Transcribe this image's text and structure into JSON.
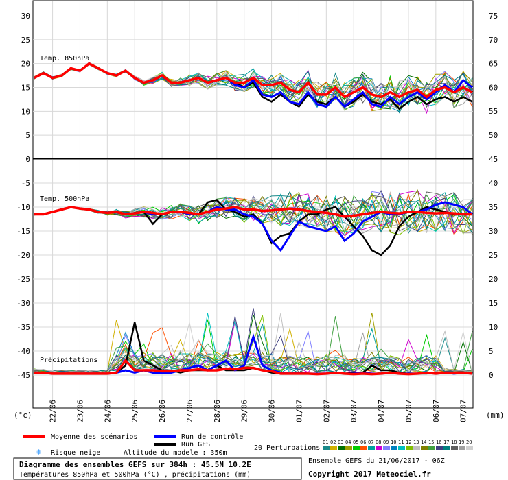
{
  "chart_data": {
    "type": "line",
    "dates": [
      "22/06",
      "23/06",
      "24/06",
      "25/06",
      "26/06",
      "27/06",
      "28/06",
      "29/06",
      "30/06",
      "01/07",
      "02/07",
      "03/07",
      "04/07",
      "05/07",
      "06/07",
      "07/07"
    ],
    "unit_left": "(°c)",
    "unit_right": "(mm)",
    "panels": {
      "t850": {
        "label": "Temp. 850hPa",
        "left_ticks": [
          30,
          25,
          20,
          15,
          10,
          5,
          0
        ],
        "right_ticks": [
          75,
          70,
          65,
          60,
          55,
          50
        ],
        "ylim_left": [
          0,
          30
        ],
        "x": [
          0,
          8,
          16,
          24,
          32,
          40,
          48,
          56,
          64,
          72,
          80,
          88,
          96,
          104,
          112,
          120,
          128,
          136,
          144,
          152,
          160,
          168,
          176,
          184,
          192,
          200,
          208,
          216,
          224,
          232,
          240,
          248,
          256,
          264,
          272,
          280,
          288,
          296,
          304,
          312,
          320,
          328,
          336,
          344,
          352,
          360,
          368,
          376,
          384
        ],
        "mean": [
          17,
          18,
          17,
          17.5,
          19,
          18.5,
          20,
          19,
          18,
          17.5,
          18.5,
          17,
          16,
          16.5,
          17.5,
          16,
          16,
          16.5,
          17,
          16,
          16.5,
          17,
          16,
          16,
          17,
          15.5,
          15.5,
          16,
          14.5,
          14,
          16,
          13.5,
          13.5,
          15,
          13,
          14,
          15,
          13.5,
          13,
          14,
          13,
          14,
          14.5,
          13,
          14.5,
          15,
          14,
          15,
          14
        ],
        "control": [
          17,
          18,
          17,
          17.5,
          19,
          18.5,
          20,
          19,
          18,
          17.5,
          18.5,
          17,
          16,
          16.5,
          17.5,
          16,
          16,
          16.5,
          17,
          16,
          16.5,
          17,
          15.5,
          15,
          16.5,
          13.5,
          13,
          14,
          12,
          11.5,
          14,
          11.5,
          11,
          13,
          11,
          12.5,
          14,
          11.5,
          11,
          13,
          11.5,
          13,
          14,
          12.5,
          14,
          15.5,
          14,
          16.5,
          15
        ],
        "gfs": [
          17,
          18,
          17,
          17.5,
          19,
          18.5,
          20,
          19,
          18,
          17.5,
          18.5,
          17,
          16,
          16.5,
          17.5,
          16,
          16,
          16.5,
          17,
          16,
          16.5,
          17,
          16,
          15,
          16,
          13,
          12,
          13.5,
          12,
          11,
          13.5,
          12,
          11.5,
          13,
          11,
          12,
          13.5,
          12,
          11.5,
          12.5,
          10.5,
          12,
          13,
          11.5,
          12.5,
          13,
          12,
          13,
          12
        ]
      },
      "t500": {
        "label": "Temp. 500hPa",
        "left_ticks": [
          -5,
          -10,
          -15,
          -20,
          -25,
          -30,
          -35,
          -40,
          -45
        ],
        "right_ticks": [
          45,
          40,
          35,
          30,
          25,
          20,
          15,
          10,
          5,
          0
        ],
        "ylim_left": [
          -49,
          0
        ],
        "x": [
          0,
          8,
          16,
          24,
          32,
          40,
          48,
          56,
          64,
          72,
          80,
          88,
          96,
          104,
          112,
          120,
          128,
          136,
          144,
          152,
          160,
          168,
          176,
          184,
          192,
          200,
          208,
          216,
          224,
          232,
          240,
          248,
          256,
          264,
          272,
          280,
          288,
          296,
          304,
          312,
          320,
          328,
          336,
          344,
          352,
          360,
          368,
          376,
          384
        ],
        "mean": [
          -11.5,
          -11.5,
          -11,
          -10.5,
          -10,
          -10.3,
          -10.5,
          -11,
          -11.2,
          -11,
          -11.5,
          -11.3,
          -11,
          -11.2,
          -11.5,
          -11,
          -11,
          -11.2,
          -11.5,
          -11,
          -10.5,
          -10.3,
          -10,
          -10.5,
          -10.5,
          -10.8,
          -10.7,
          -10.5,
          -10.3,
          -10.5,
          -10.8,
          -11,
          -11.2,
          -11.5,
          -12,
          -11.8,
          -11.5,
          -11.2,
          -11,
          -11.2,
          -11.3,
          -11,
          -11,
          -11.2,
          -11.3,
          -11.2,
          -11.3,
          -11.5,
          -11.5
        ],
        "control": [
          -11.5,
          -11.5,
          -11,
          -10.5,
          -10,
          -10.3,
          -10.5,
          -11,
          -11.2,
          -11,
          -11.5,
          -11.3,
          -11,
          -11.5,
          -11.5,
          -11,
          -11,
          -11.5,
          -11.5,
          -11,
          -10,
          -10.5,
          -10.5,
          -11.5,
          -12,
          -13.5,
          -17,
          -19,
          -16,
          -13,
          -14,
          -14.5,
          -15,
          -14,
          -17,
          -15.5,
          -13,
          -12,
          -11,
          -11.5,
          -11.5,
          -11,
          -11,
          -10.5,
          -9.5,
          -9,
          -9.5,
          -10,
          -11.5
        ],
        "gfs": [
          -11.5,
          -11.5,
          -11,
          -10.5,
          -10,
          -10.3,
          -10.5,
          -11,
          -11.2,
          -11,
          -11.5,
          -11.2,
          -11,
          -13.5,
          -11.5,
          -11,
          -11,
          -11.5,
          -11.5,
          -9,
          -8.5,
          -10.5,
          -11,
          -12,
          -11.5,
          -13.5,
          -17.5,
          -16,
          -15.5,
          -13,
          -11.5,
          -11.5,
          -10.5,
          -10,
          -12,
          -14,
          -16,
          -19,
          -20,
          -18,
          -14,
          -12,
          -11,
          -10,
          -10.5,
          -11,
          -11.5,
          -11.5,
          -11.5
        ]
      },
      "precip": {
        "label": "Précipitations",
        "ylim_mm": [
          0,
          45
        ],
        "x": [
          0,
          8,
          16,
          24,
          32,
          40,
          48,
          56,
          64,
          72,
          80,
          88,
          96,
          104,
          112,
          120,
          128,
          136,
          144,
          152,
          160,
          168,
          176,
          184,
          192,
          200,
          208,
          216,
          224,
          232,
          240,
          248,
          256,
          264,
          272,
          280,
          288,
          296,
          304,
          312,
          320,
          328,
          336,
          344,
          352,
          360,
          368,
          376,
          384
        ],
        "mean": [
          0.5,
          0.5,
          0.3,
          0.3,
          0.3,
          0.3,
          0.3,
          0.3,
          0.3,
          0.5,
          3,
          1,
          1,
          1,
          0.8,
          0.8,
          1,
          1,
          1.2,
          1,
          1,
          1.3,
          1.2,
          1.5,
          1.5,
          1,
          0.8,
          0.3,
          0.3,
          0.3,
          0.3,
          0.2,
          0.3,
          0.5,
          0.3,
          0.2,
          0.3,
          0.2,
          0.3,
          0.5,
          0.3,
          0.2,
          0.3,
          0.5,
          0.3,
          0.5,
          0.5,
          0.5,
          0.3
        ],
        "control": [
          0.5,
          0.5,
          0.3,
          0.3,
          0.3,
          0.3,
          0.3,
          0.3,
          0.3,
          0.5,
          1,
          0.5,
          1,
          0.5,
          0.5,
          0.5,
          1,
          1.5,
          2,
          1,
          2,
          3,
          1,
          2,
          8,
          2,
          1,
          0.5,
          0.3,
          0.5,
          0.3,
          0.3,
          0.3,
          0.5,
          0.3,
          0.3,
          0.5,
          0.3,
          0.3,
          0.5,
          0.3,
          0.3,
          0.3,
          0.5,
          0.3,
          0.5,
          0.3,
          0.5,
          0.3
        ],
        "gfs": [
          0.5,
          0.5,
          0.3,
          0.3,
          0.3,
          0.3,
          0.3,
          0.3,
          0.3,
          0.5,
          2,
          11,
          3,
          2,
          1,
          1,
          0.5,
          1,
          1,
          1,
          2,
          1,
          1,
          1,
          1.5,
          1,
          0.5,
          0.3,
          0.3,
          0.3,
          0.3,
          0.3,
          0.3,
          0.5,
          0.3,
          0.5,
          0.5,
          2,
          1,
          1,
          0.5,
          0.3,
          0.3,
          0.3,
          0.5,
          0.5,
          0.5,
          0.5,
          0.3
        ]
      }
    }
  },
  "legend": {
    "mean": "Moyenne des scénarios",
    "control": "Run de contrôle",
    "gfs": "Run GFS",
    "snow_risk": "Risque neige",
    "altitude": "Altitude du modele : 350m",
    "perturbations_label": "20 Perturbations",
    "perturbation_numbers": [
      "01",
      "02",
      "03",
      "04",
      "05",
      "06",
      "07",
      "08",
      "09",
      "10",
      "11",
      "12",
      "13",
      "14",
      "15",
      "16",
      "17",
      "18",
      "19",
      "20"
    ],
    "perturbation_colors": [
      "#1a8a8a",
      "#d0b000",
      "#007000",
      "#a0a000",
      "#00cc00",
      "#ff5000",
      "#00a0a0",
      "#d000d0",
      "#8080ff",
      "#0080c0",
      "#00c0c0",
      "#80c000",
      "#c0c0c0",
      "#808000",
      "#40a040",
      "#404080",
      "#008080",
      "#606060",
      "#a0a0a0",
      "#d0d0d0"
    ],
    "colors": {
      "mean": "#ff0000",
      "control": "#0000ff",
      "gfs": "#000000",
      "snow": "#40a0ff"
    }
  },
  "info": {
    "title": "Diagramme des ensembles GEFS sur 384h : 45.5N 10.2E",
    "subtitle": "Températures 850hPa et 500hPa (°C) , précipitations (mm)",
    "run": "Ensemble GEFS du 21/06/2017 - 06Z",
    "copyright": "Copyright 2017 Meteociel.fr"
  }
}
